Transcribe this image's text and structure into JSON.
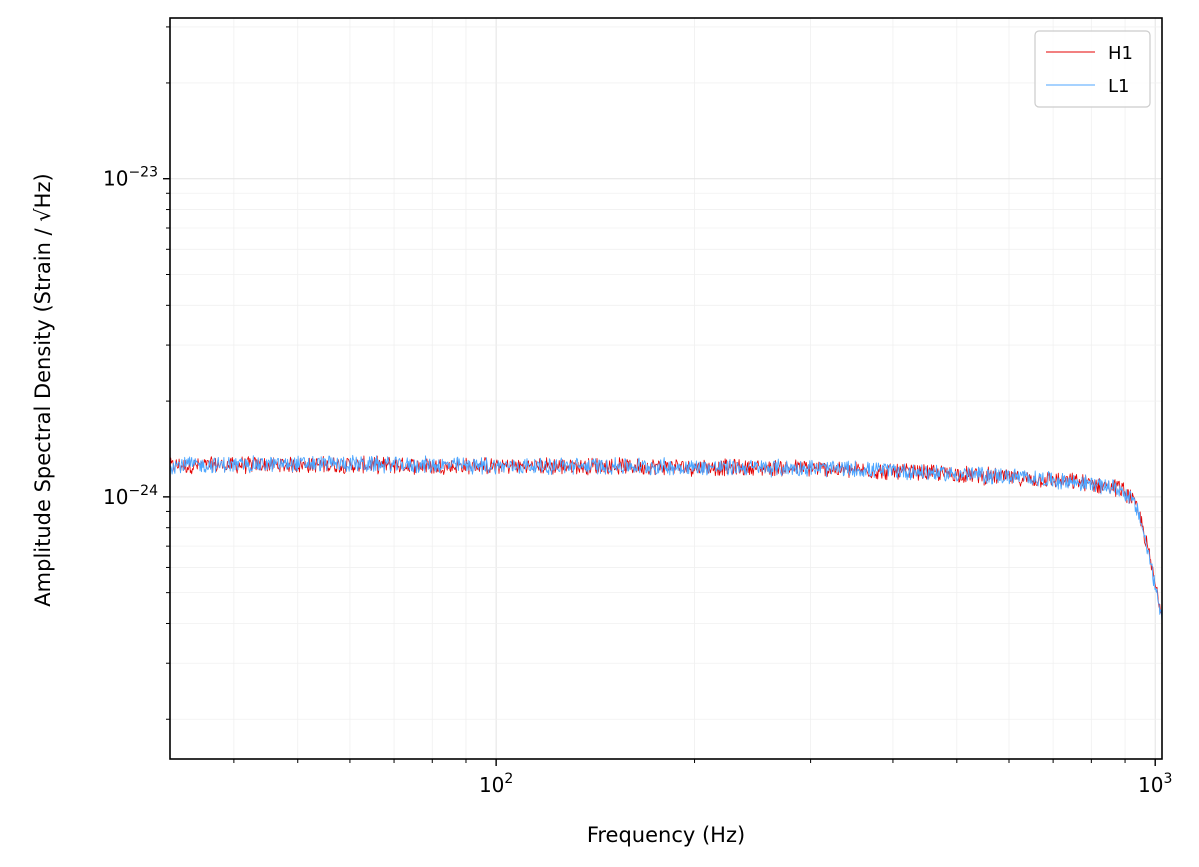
{
  "chart_data": {
    "type": "line",
    "xlabel": "Frequency (Hz)",
    "ylabel": "Amplitude Spectral Density (Strain / √Hz)",
    "xscale": "log",
    "yscale": "log",
    "xlim": [
      32,
      1024
    ],
    "ylim": [
      1.5e-25,
      3.2e-23
    ],
    "grid": true,
    "legend_position": "top-right",
    "x_ticks": [
      {
        "value": 100,
        "base": "10",
        "exp": "2"
      },
      {
        "value": 1000,
        "base": "10",
        "exp": "3"
      }
    ],
    "y_ticks": [
      {
        "value": 1e-24,
        "base": "10",
        "exp": "−24"
      },
      {
        "value": 1e-23,
        "base": "10",
        "exp": "−23"
      }
    ],
    "series": [
      {
        "name": "H1",
        "color": "#e50000",
        "x": [
          32,
          40,
          50,
          60,
          70,
          80,
          100,
          150,
          200,
          300,
          400,
          500,
          600,
          700,
          800,
          880,
          920,
          950,
          980,
          1000,
          1024
        ],
        "y": [
          1.25e-24,
          1.26e-24,
          1.26e-24,
          1.26e-24,
          1.26e-24,
          1.25e-24,
          1.25e-24,
          1.25e-24,
          1.24e-24,
          1.23e-24,
          1.2e-24,
          1.18e-24,
          1.15e-24,
          1.13e-24,
          1.1e-24,
          1.07e-24,
          1e-24,
          8.6e-25,
          6.5e-25,
          5.3e-25,
          4.3e-25
        ]
      },
      {
        "name": "L1",
        "color": "#4da6ff",
        "x": [
          32,
          40,
          50,
          60,
          70,
          80,
          100,
          150,
          200,
          300,
          400,
          500,
          600,
          700,
          800,
          880,
          920,
          950,
          980,
          1000,
          1024
        ],
        "y": [
          1.26e-24,
          1.26e-24,
          1.27e-24,
          1.27e-24,
          1.26e-24,
          1.26e-24,
          1.25e-24,
          1.25e-24,
          1.24e-24,
          1.23e-24,
          1.21e-24,
          1.18e-24,
          1.16e-24,
          1.13e-24,
          1.1e-24,
          1.06e-24,
          9.9e-25,
          8.5e-25,
          6.4e-25,
          5.2e-25,
          4.2e-25
        ]
      }
    ]
  }
}
